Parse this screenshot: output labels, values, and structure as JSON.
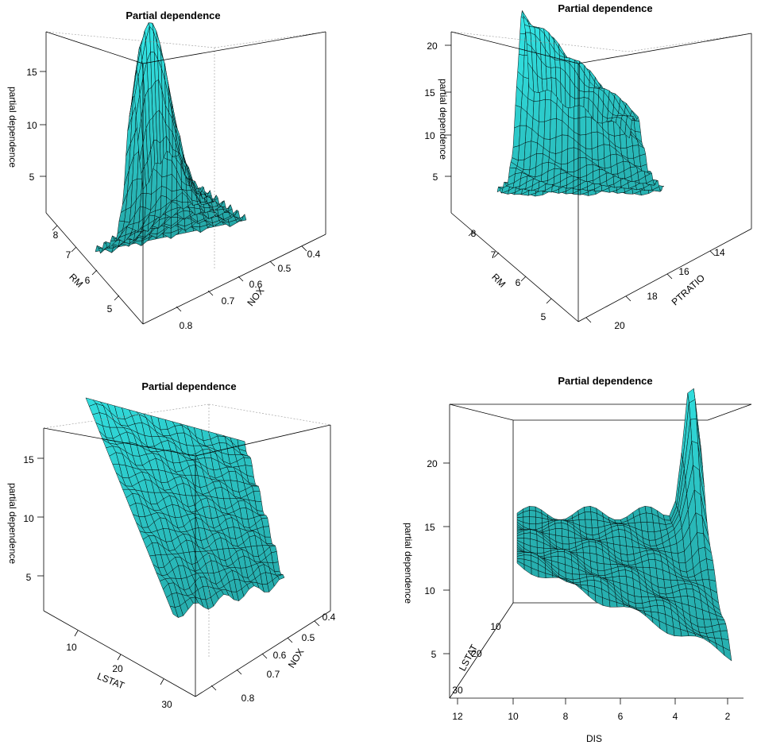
{
  "chart_data": [
    {
      "type": "surface",
      "title": "Partial dependence",
      "xlabel": "RM",
      "ylabel": "NOX",
      "zlabel": "partial dependence",
      "x_ticks": [
        "5",
        "6",
        "7",
        "8"
      ],
      "y_ticks": [
        "0.4",
        "0.5",
        "0.6",
        "0.7",
        "0.8"
      ],
      "z_ticks": [
        "5",
        "10",
        "15"
      ],
      "xlim": [
        4.5,
        8.8
      ],
      "ylim": [
        0.38,
        0.87
      ],
      "zlim": [
        1,
        18
      ],
      "surface_color": "#33e6e6"
    },
    {
      "type": "surface",
      "title": "Partial dependence",
      "xlabel": "RM",
      "ylabel": "PTRATIO",
      "zlabel": "partial dependence",
      "x_ticks": [
        "5",
        "6",
        "7",
        "8"
      ],
      "y_ticks": [
        "14",
        "16",
        "18",
        "20"
      ],
      "z_ticks": [
        "5",
        "10",
        "15",
        "20"
      ],
      "xlim": [
        4.5,
        8.8
      ],
      "ylim": [
        12.6,
        22
      ],
      "zlim": [
        1,
        21
      ],
      "surface_color": "#33e6e6"
    },
    {
      "type": "surface",
      "title": "Partial dependence",
      "xlabel": "LSTAT",
      "ylabel": "NOX",
      "zlabel": "partial dependence",
      "x_ticks": [
        "10",
        "20",
        "30"
      ],
      "y_ticks": [
        "0.4",
        "0.5",
        "0.6",
        "0.7",
        "0.8"
      ],
      "z_ticks": [
        "5",
        "10",
        "15"
      ],
      "xlim": [
        2,
        38
      ],
      "ylim": [
        0.38,
        0.87
      ],
      "zlim": [
        1,
        18
      ],
      "surface_color": "#33e6e6"
    },
    {
      "type": "surface",
      "title": "Partial dependence",
      "xlabel": "DIS",
      "ylabel": "LSTAT",
      "zlabel": "partial dependence",
      "x_ticks": [
        "12",
        "10",
        "8",
        "6",
        "4",
        "2"
      ],
      "y_ticks": [
        "10",
        "20",
        "30"
      ],
      "z_ticks": [
        "5",
        "10",
        "15",
        "20"
      ],
      "xlim": [
        1,
        12.5
      ],
      "ylim": [
        2,
        38
      ],
      "zlim": [
        1,
        24
      ],
      "surface_color": "#33e6e6"
    }
  ]
}
